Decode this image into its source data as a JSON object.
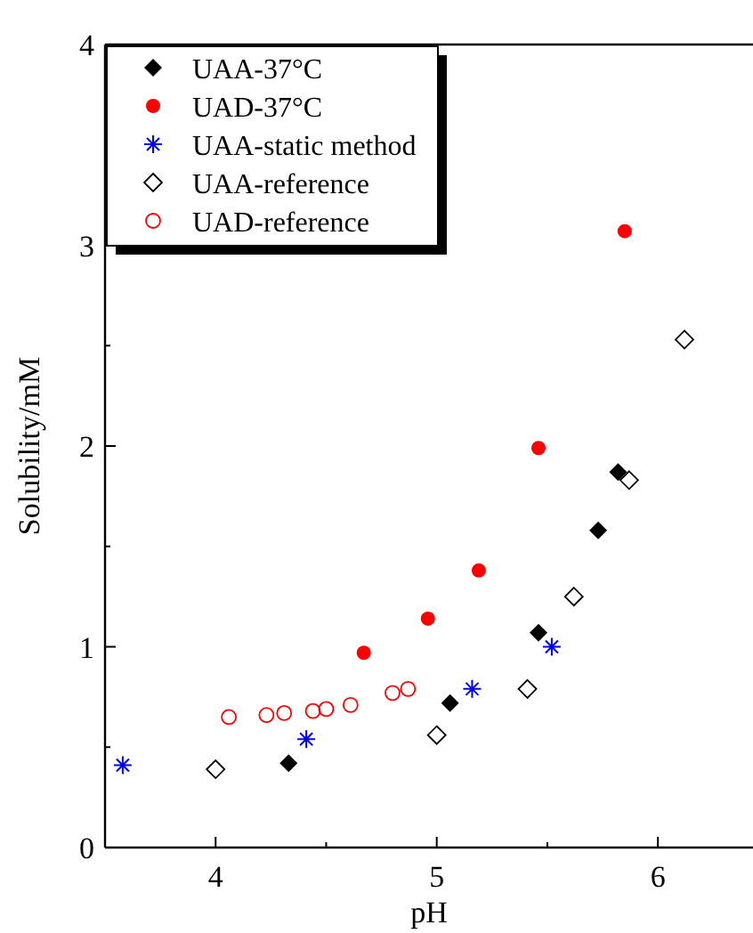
{
  "chart_data": {
    "type": "scatter",
    "xlabel": "pH",
    "ylabel": "Solubility/mM",
    "xlim": [
      3.5,
      6.43
    ],
    "ylim": [
      0,
      4
    ],
    "xticks": [
      4,
      {
        "value": 4.5,
        "label": null
      },
      5,
      {
        "value": 5.5,
        "label": null
      },
      6
    ],
    "yticks": [
      0,
      {
        "value": 0.5,
        "label": null
      },
      1,
      {
        "value": 1.5,
        "label": null
      },
      2,
      {
        "value": 2.5,
        "label": null
      },
      3,
      {
        "value": 3.5,
        "label": null
      },
      4
    ],
    "legend": "top left",
    "grid": false,
    "series": [
      {
        "name": "UAA-37°C",
        "color": "#000000",
        "marker": "diamond",
        "x": [
          4.33,
          5.06,
          5.46,
          5.73,
          5.82
        ],
        "values": [
          0.42,
          0.72,
          1.07,
          1.58,
          1.87
        ]
      },
      {
        "name": "UAD-37°C",
        "color": "#ff0000",
        "marker": "circle",
        "x": [
          4.67,
          4.96,
          5.19,
          5.46,
          5.85
        ],
        "values": [
          0.97,
          1.14,
          1.38,
          1.99,
          3.07
        ]
      },
      {
        "name": "UAA-static method",
        "color": "#0000ff",
        "marker": "cross",
        "x": [
          3.58,
          4.41,
          5.16,
          5.52
        ],
        "values": [
          0.41,
          0.54,
          0.79,
          1.0
        ]
      },
      {
        "name": "UAA-reference",
        "color": "#000000",
        "marker": "diamond-open",
        "x": [
          4.0,
          5.0,
          5.41,
          5.62,
          5.87,
          6.12
        ],
        "values": [
          0.39,
          0.56,
          0.79,
          1.25,
          1.83,
          2.53
        ]
      },
      {
        "name": "UAD-reference",
        "color": "#ff0000",
        "marker": "circle-open",
        "x": [
          4.06,
          4.23,
          4.31,
          4.44,
          4.5,
          4.61,
          4.8,
          4.87
        ],
        "values": [
          0.65,
          0.66,
          0.67,
          0.68,
          0.69,
          0.71,
          0.77,
          0.79
        ]
      }
    ]
  }
}
